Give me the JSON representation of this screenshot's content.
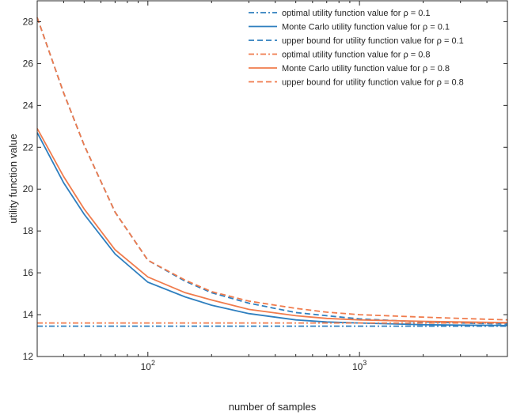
{
  "chart_data": {
    "type": "line",
    "xlabel": "number of samples",
    "ylabel": "utility function value",
    "xscale": "log",
    "xlim": [
      30,
      5000
    ],
    "ylim": [
      12,
      29
    ],
    "yticks": [
      12,
      14,
      16,
      18,
      20,
      22,
      24,
      26,
      28
    ],
    "ytick_labels": [
      "12",
      "14",
      "16",
      "18",
      "20",
      "22",
      "24",
      "26",
      "28"
    ],
    "xticks": [
      100,
      1000
    ],
    "xtick_labels": [
      {
        "base": "10",
        "exp": "2"
      },
      {
        "base": "10",
        "exp": "3"
      }
    ],
    "grid": false,
    "box": true,
    "legend_position": "top-right",
    "colors": {
      "blue": "#2f7fbf",
      "orange": "#f07b4c",
      "axis": "#262626"
    },
    "series": [
      {
        "name": "optimal utility function value for ρ = 0.1",
        "color": "#2f7fbf",
        "style": "dashdot",
        "x": [
          30,
          5000
        ],
        "y": [
          13.45,
          13.45
        ]
      },
      {
        "name": "Monte Carlo utility function value for ρ = 0.1",
        "color": "#2f7fbf",
        "style": "solid",
        "x": [
          30,
          40,
          50,
          70,
          100,
          150,
          200,
          300,
          500,
          700,
          1000,
          2000,
          3000,
          5000
        ],
        "y": [
          22.7,
          20.3,
          18.8,
          16.9,
          15.55,
          14.85,
          14.45,
          14.05,
          13.75,
          13.65,
          13.6,
          13.52,
          13.5,
          13.48
        ]
      },
      {
        "name": "upper bound for utility function value for ρ = 0.1",
        "color": "#2f7fbf",
        "style": "dashed",
        "x": [
          30,
          40,
          50,
          70,
          100,
          150,
          200,
          300,
          500,
          700,
          1000,
          2000,
          3000,
          5000
        ],
        "y": [
          28.2,
          24.6,
          22.1,
          18.9,
          16.6,
          15.6,
          15.05,
          14.55,
          14.1,
          13.95,
          13.8,
          13.65,
          13.6,
          13.55
        ]
      },
      {
        "name": "optimal utility function value for ρ = 0.8",
        "color": "#f07b4c",
        "style": "dashdot",
        "x": [
          30,
          5000
        ],
        "y": [
          13.6,
          13.6
        ]
      },
      {
        "name": "Monte Carlo utility function value for ρ = 0.8",
        "color": "#f07b4c",
        "style": "solid",
        "x": [
          30,
          40,
          50,
          70,
          100,
          150,
          200,
          300,
          500,
          700,
          1000,
          2000,
          3000,
          5000
        ],
        "y": [
          22.9,
          20.6,
          19.05,
          17.1,
          15.8,
          15.05,
          14.7,
          14.25,
          13.95,
          13.82,
          13.75,
          13.68,
          13.65,
          13.62
        ]
      },
      {
        "name": "upper bound for utility function value for ρ = 0.8",
        "color": "#f07b4c",
        "style": "dashed",
        "x": [
          30,
          40,
          50,
          70,
          100,
          150,
          200,
          300,
          500,
          700,
          1000,
          2000,
          3000,
          5000
        ],
        "y": [
          28.2,
          24.6,
          22.1,
          18.9,
          16.6,
          15.65,
          15.1,
          14.65,
          14.3,
          14.12,
          14.0,
          13.88,
          13.82,
          13.75
        ]
      }
    ]
  }
}
